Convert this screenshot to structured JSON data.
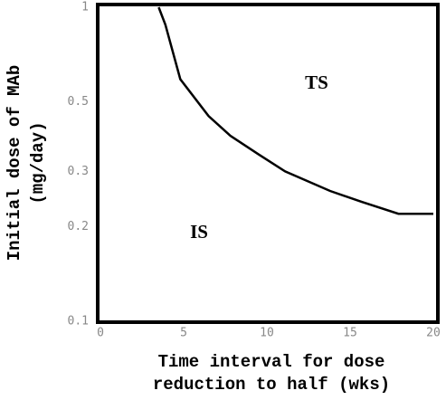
{
  "chart_data": {
    "type": "line",
    "xlabel": [
      "Time interval for dose",
      "reduction to half (wks)"
    ],
    "ylabel": [
      "Initial dose of MAb",
      "(mg/day)"
    ],
    "x": [
      3.5,
      3.9,
      4.8,
      6.5,
      7.8,
      9.5,
      11.1,
      13.8,
      15.7,
      17.9,
      20
    ],
    "values": [
      1,
      0.88,
      0.59,
      0.45,
      0.39,
      0.34,
      0.3,
      0.26,
      0.24,
      0.22,
      0.22
    ],
    "color": "#000000",
    "xlim": [
      0,
      20
    ],
    "xticks": [
      0,
      5,
      10,
      15,
      20
    ],
    "ylim": [
      0.1,
      1
    ],
    "yticks": [
      0.1,
      0.2,
      0.3,
      0.5,
      1
    ],
    "ylog": true,
    "annotations": [
      "TS",
      "IS"
    ]
  }
}
